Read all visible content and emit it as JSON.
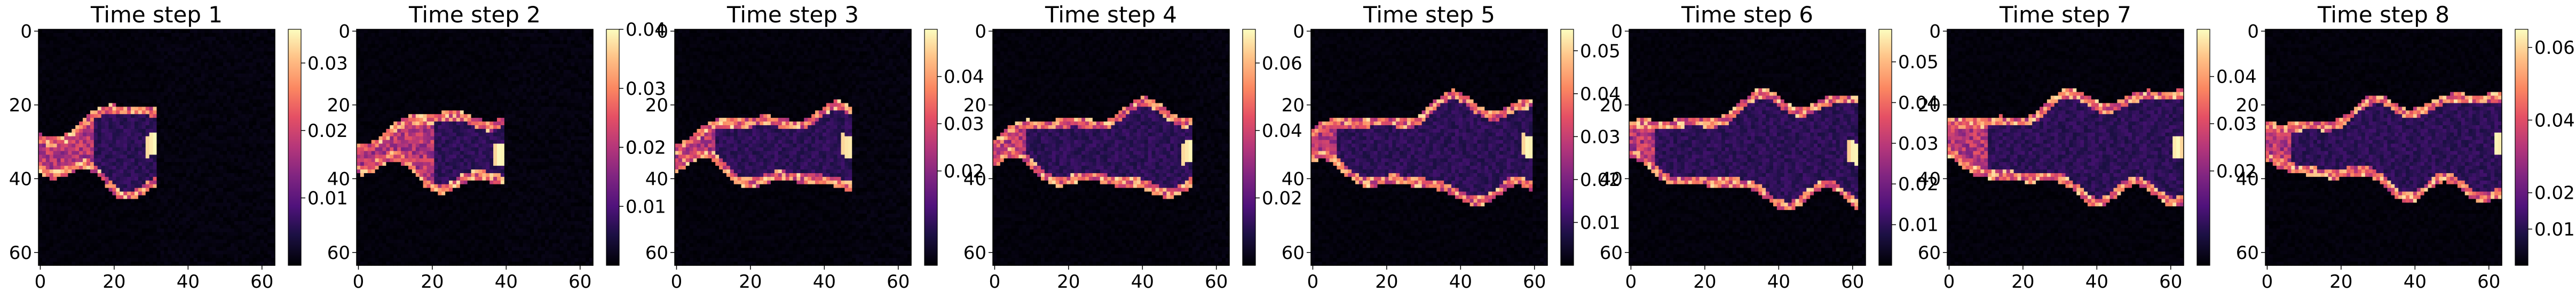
{
  "chart_data": {
    "type": "heatmap",
    "colormap": "magma",
    "colors": {
      "map_low": "#000004",
      "map_mid": "#b73779",
      "map_high": "#fcfdbf"
    },
    "panels": [
      {
        "title": "Time step 1",
        "xticks": [
          0,
          20,
          40,
          60
        ],
        "yticks": [
          0,
          20,
          40,
          60
        ],
        "xlim": [
          0,
          63
        ],
        "ylim": [
          63,
          0
        ],
        "colorbar": {
          "ticks": [
            "0.01",
            "0.02",
            "0.03"
          ],
          "range": [
            0.0,
            0.035
          ]
        },
        "feature": {
          "core_x": [
            0,
            14
          ],
          "front_x": 30,
          "center_y": 32,
          "half_width": 10,
          "peak": 0.035
        }
      },
      {
        "title": "Time step 2",
        "xticks": [
          0,
          20,
          40,
          60
        ],
        "yticks": [
          0,
          20,
          40,
          60
        ],
        "xlim": [
          0,
          63
        ],
        "ylim": [
          63,
          0
        ],
        "colorbar": {
          "ticks": [
            "0.01",
            "0.02",
            "0.02",
            "0.03",
            "0.04"
          ],
          "range": [
            0.0,
            0.04
          ]
        },
        "feature": {
          "core_x": [
            0,
            20
          ],
          "front_x": 38,
          "center_y": 32,
          "half_width": 9,
          "peak": 0.04
        }
      },
      {
        "title": "Time step 3",
        "xticks": [
          0,
          20,
          40,
          60
        ],
        "yticks": [
          0,
          20,
          40,
          60
        ],
        "xlim": [
          0,
          63
        ],
        "ylim": [
          63,
          0
        ],
        "colorbar": {
          "ticks": [
            "0.02",
            "0.03",
            "0.04"
          ],
          "range": [
            0.0,
            0.05
          ]
        },
        "feature": {
          "core_x": [
            0,
            10
          ],
          "front_x": 46,
          "center_y": 32,
          "half_width": 9,
          "peak": 0.05
        }
      },
      {
        "title": "Time step 4",
        "xticks": [
          0,
          20,
          40,
          60
        ],
        "yticks": [
          0,
          20,
          40,
          60
        ],
        "xlim": [
          0,
          63
        ],
        "ylim": [
          63,
          0
        ],
        "colorbar": {
          "ticks": [
            "0.02",
            "0.04",
            "0.06"
          ],
          "range": [
            0.0,
            0.07
          ]
        },
        "feature": {
          "core_x": [
            0,
            8
          ],
          "front_x": 52,
          "center_y": 32,
          "half_width": 10,
          "peak": 0.07
        }
      },
      {
        "title": "Time step 5",
        "xticks": [
          0,
          20,
          40,
          60
        ],
        "yticks": [
          0,
          20,
          40,
          60
        ],
        "xlim": [
          0,
          63
        ],
        "ylim": [
          63,
          0
        ],
        "colorbar": {
          "ticks": [
            "0.01",
            "0.02",
            "0.03",
            "0.04",
            "0.05"
          ],
          "range": [
            0.0,
            0.055
          ]
        },
        "feature": {
          "core_x": [
            0,
            6
          ],
          "front_x": 58,
          "center_y": 32,
          "half_width": 12,
          "peak": 0.055
        }
      },
      {
        "title": "Time step 6",
        "xticks": [
          0,
          20,
          40,
          60
        ],
        "yticks": [
          0,
          20,
          40,
          60
        ],
        "xlim": [
          0,
          63
        ],
        "ylim": [
          63,
          0
        ],
        "colorbar": {
          "ticks": [
            "0.01",
            "0.02",
            "0.03",
            "0.04",
            "0.05"
          ],
          "range": [
            0.0,
            0.058
          ]
        },
        "feature": {
          "core_x": [
            0,
            6
          ],
          "front_x": 60,
          "center_y": 32,
          "half_width": 13,
          "peak": 0.058
        }
      },
      {
        "title": "Time step 7",
        "xticks": [
          0,
          20,
          40,
          60
        ],
        "yticks": [
          0,
          20,
          40,
          60
        ],
        "xlim": [
          0,
          63
        ],
        "ylim": [
          63,
          0
        ],
        "colorbar": {
          "ticks": [
            "0.02",
            "0.03",
            "0.04"
          ],
          "range": [
            0.0,
            0.05
          ]
        },
        "feature": {
          "core_x": [
            0,
            10
          ],
          "front_x": 62,
          "center_y": 31,
          "half_width": 13,
          "peak": 0.05
        }
      },
      {
        "title": "Time step 8",
        "xticks": [
          0,
          20,
          40,
          60
        ],
        "yticks": [
          0,
          20,
          40,
          60
        ],
        "xlim": [
          0,
          63
        ],
        "ylim": [
          63,
          0
        ],
        "colorbar": {
          "ticks": [
            "0.01",
            "0.02",
            "0.04",
            "0.06"
          ],
          "range": [
            0.0,
            0.065
          ]
        },
        "feature": {
          "core_x": [
            0,
            6
          ],
          "front_x": 63,
          "center_y": 31,
          "half_width": 12,
          "peak": 0.065
        }
      }
    ]
  }
}
